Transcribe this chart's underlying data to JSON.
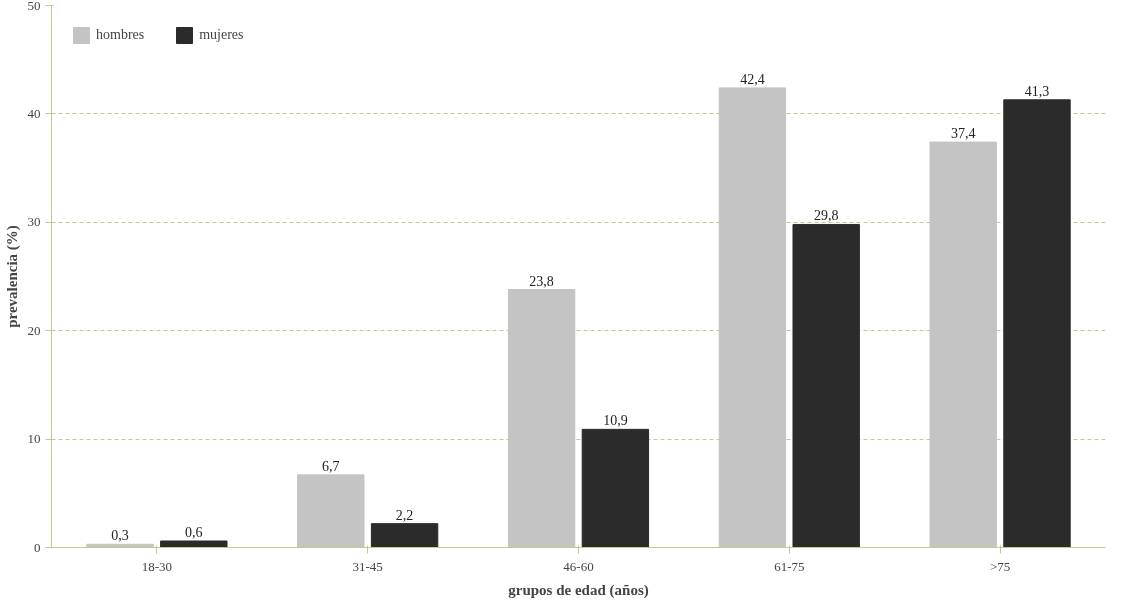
{
  "chart_data": {
    "type": "bar",
    "xlabel": "grupos de edad (años)",
    "ylabel": "prevalencia (%)",
    "categories": [
      "18-30",
      "31-45",
      "46-60",
      "61-75",
      ">75"
    ],
    "series": [
      {
        "name": "hombres",
        "color": "#c4c4c4",
        "values": [
          0.3,
          6.7,
          23.8,
          42.4,
          37.4
        ],
        "value_labels": [
          "0,3",
          "6,7",
          "23,8",
          "42,4",
          "37,4"
        ]
      },
      {
        "name": "mujeres",
        "color": "#2b2b2b",
        "values": [
          0.6,
          2.2,
          10.9,
          29.8,
          41.3
        ],
        "value_labels": [
          "0,6",
          "2,2",
          "10,9",
          "29,8",
          "41,3"
        ]
      }
    ],
    "ylim": [
      0,
      50
    ],
    "yticks": [
      0,
      10,
      20,
      30,
      40,
      50
    ],
    "grid": "y",
    "legend": "top left"
  }
}
